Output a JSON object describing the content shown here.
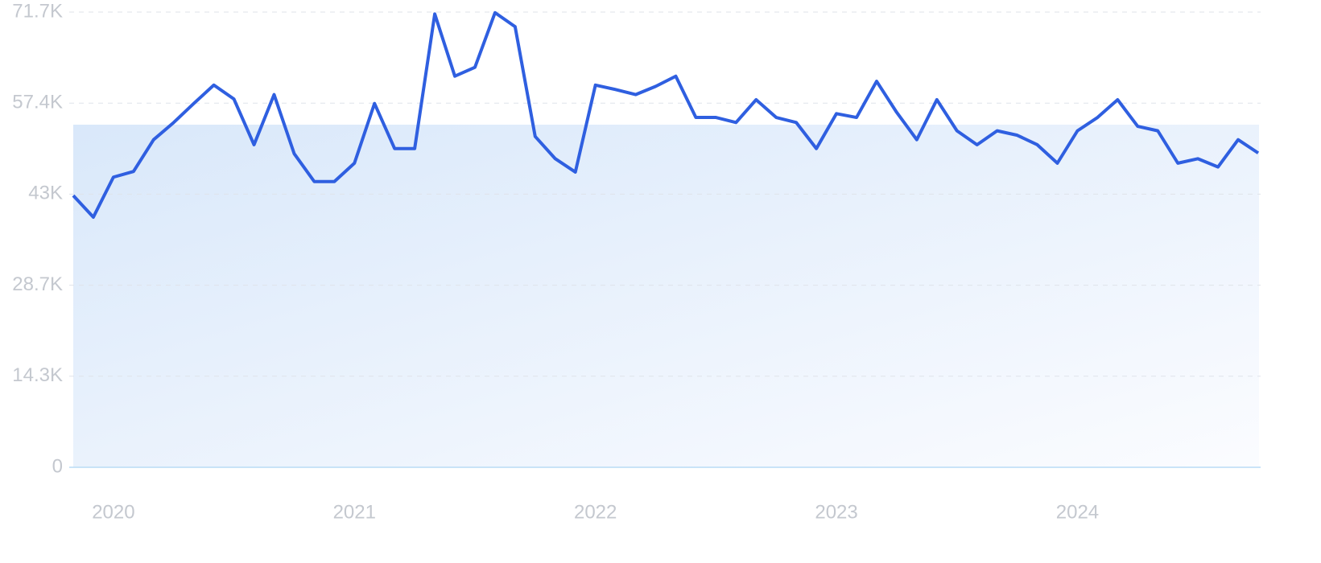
{
  "chart_data": {
    "type": "line",
    "categories": [
      null,
      null,
      "2020",
      null,
      null,
      null,
      null,
      null,
      null,
      null,
      null,
      null,
      null,
      null,
      "2021",
      null,
      null,
      null,
      null,
      null,
      null,
      null,
      null,
      null,
      null,
      null,
      "2022",
      null,
      null,
      null,
      null,
      null,
      null,
      null,
      null,
      null,
      null,
      null,
      "2023",
      null,
      null,
      null,
      null,
      null,
      null,
      null,
      null,
      null,
      null,
      null,
      "2024",
      null,
      null,
      null,
      null,
      null,
      null,
      null,
      null,
      null
    ],
    "series": [
      {
        "color": "#2f5fe0",
        "values": [
          42800,
          39400,
          45700,
          46600,
          51600,
          54300,
          57300,
          60200,
          58000,
          50800,
          58700,
          49400,
          45000,
          45000,
          47900,
          57300,
          50200,
          50200,
          71400,
          61600,
          63000,
          71600,
          69400,
          52100,
          48600,
          46500,
          60200,
          59500,
          58700,
          60000,
          61600,
          55100,
          55100,
          54300,
          57900,
          55100,
          54300,
          50200,
          55700,
          55100,
          60800,
          55900,
          51600,
          57900,
          53000,
          50800,
          53000,
          52300,
          50800,
          47900,
          53000,
          55100,
          57900,
          53700,
          53000,
          47900,
          48600,
          47300,
          51600,
          49500
        ]
      }
    ],
    "ylim": [
      0,
      71700
    ],
    "yticks": [
      0,
      {
        "value": 14340,
        "label": "14.3K"
      },
      {
        "value": 28680,
        "label": "28.7K"
      },
      {
        "value": 43020,
        "label": "43K"
      },
      {
        "value": 57360,
        "label": "57.4K"
      },
      {
        "value": 71700,
        "label": "71.7K"
      }
    ],
    "grid": true
  }
}
